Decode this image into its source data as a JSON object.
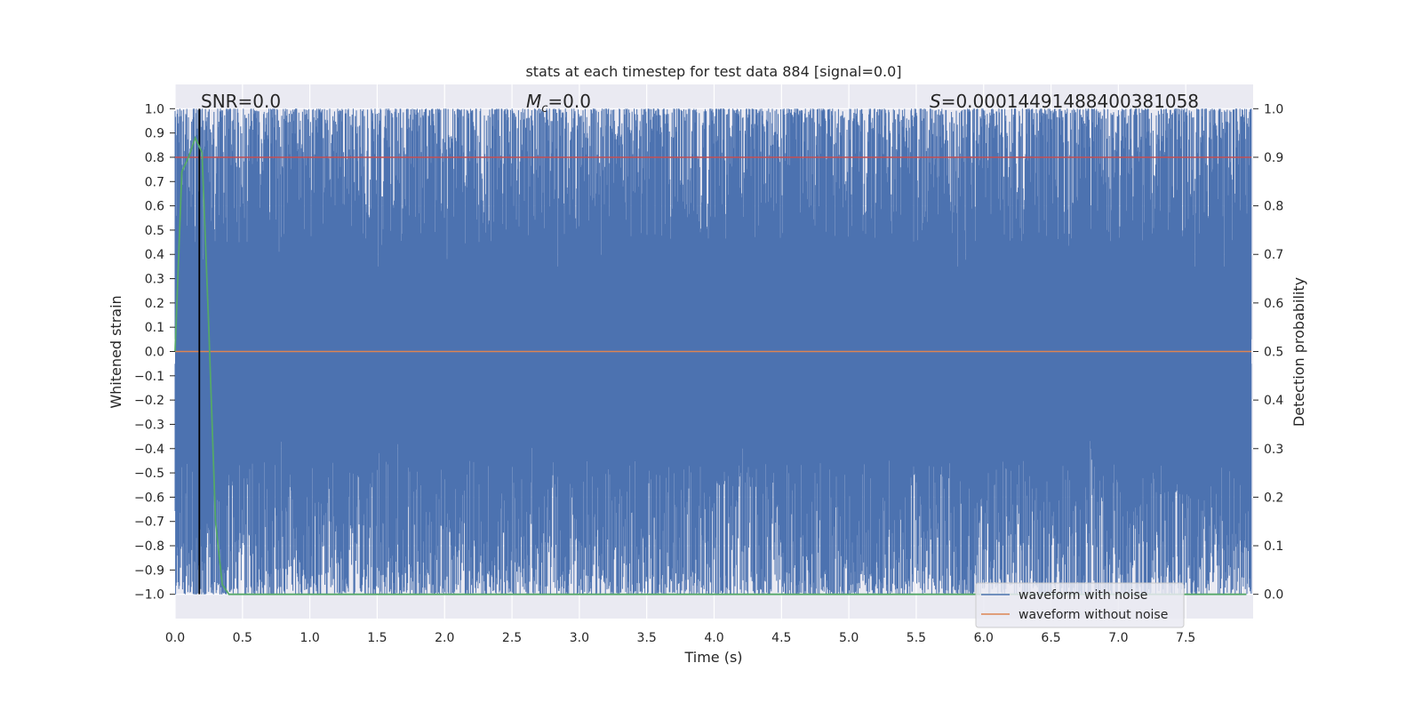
{
  "chart_data": {
    "type": "line",
    "title": "stats at each timestep for test data 884 [signal=0.0]",
    "xlabel": "Time (s)",
    "ylabel": "Whitened strain",
    "y2label": "Detection probability",
    "xlim": [
      0.0,
      8.0
    ],
    "ylim": [
      -1.1,
      1.1
    ],
    "y2lim": [
      -0.05,
      1.05
    ],
    "x_ticks": [
      "0.0",
      "0.5",
      "1.0",
      "1.5",
      "2.0",
      "2.5",
      "3.0",
      "3.5",
      "4.0",
      "4.5",
      "5.0",
      "5.5",
      "6.0",
      "6.5",
      "7.0",
      "7.5"
    ],
    "y_ticks": [
      "1.0",
      "0.9",
      "0.8",
      "0.7",
      "0.6",
      "0.5",
      "0.4",
      "0.3",
      "0.2",
      "0.1",
      "0.0",
      "−0.1",
      "−0.2",
      "−0.3",
      "−0.4",
      "−0.5",
      "−0.6",
      "−0.7",
      "−0.8",
      "−0.9",
      "−1.0"
    ],
    "y2_ticks": [
      "1.0",
      "0.9",
      "0.8",
      "0.7",
      "0.6",
      "0.5",
      "0.4",
      "0.3",
      "0.2",
      "0.1",
      "0.0"
    ],
    "grid": true,
    "annotations": {
      "snr": "SNR=0.0",
      "mc_symbol": "M",
      "mc_sub": "c",
      "mc_value": "=0.0",
      "s_symbol": "S",
      "s_value": "=0.00014491488400381058"
    },
    "series": [
      {
        "name": "waveform with noise",
        "color": "#4c72b0",
        "description_values": "noise band spanning approximately -1.0 to 1.0 over 0.0 to 8.0 s"
      },
      {
        "name": "waveform without noise",
        "color": "#dd8452",
        "values_constant": 0.0
      }
    ],
    "threshold_line": {
      "y2": 0.9,
      "color": "#c44e52"
    },
    "marker_line": {
      "x": 0.18,
      "color": "#000000"
    },
    "probability_curve": {
      "color": "#55a868",
      "x": [
        0.0,
        0.05,
        0.1,
        0.15,
        0.2,
        0.25,
        0.3,
        0.35,
        0.4,
        1.0,
        2.0,
        3.0,
        4.0,
        5.0,
        6.0,
        7.0,
        7.95
      ],
      "y": [
        0.5,
        0.87,
        0.9,
        0.94,
        0.91,
        0.55,
        0.15,
        0.02,
        0.0,
        0.0,
        0.0,
        0.0,
        0.0,
        0.0,
        0.0,
        0.0,
        0.0
      ]
    }
  },
  "legend": {
    "items": [
      {
        "label": "waveform with noise",
        "color": "#4c72b0"
      },
      {
        "label": "waveform without noise",
        "color": "#dd8452"
      }
    ]
  }
}
